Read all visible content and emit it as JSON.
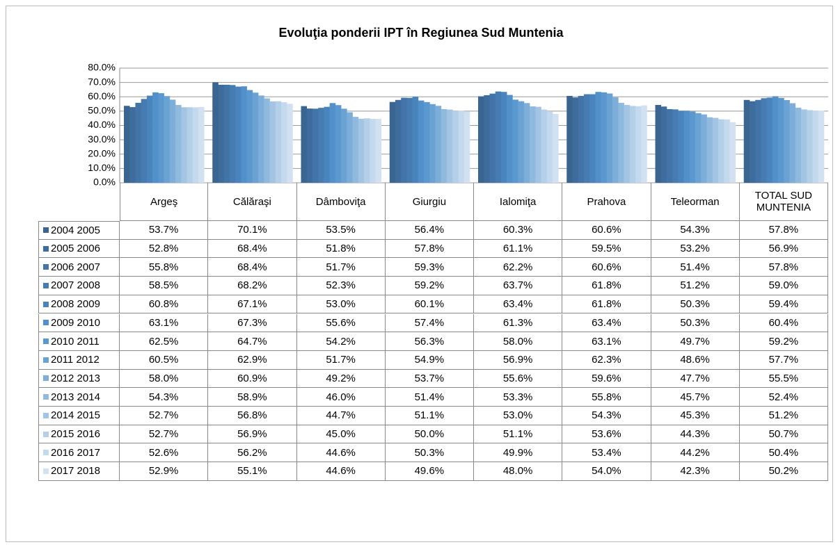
{
  "chart_data": {
    "type": "bar",
    "title": "Evoluţia ponderii IPT în Regiunea Sud Muntenia",
    "categories": [
      "Argeş",
      "Călăraşi",
      "Dâmboviţa",
      "Giurgiu",
      "Ialomiţa",
      "Prahova",
      "Teleorman",
      "TOTAL SUD MUNTENIA"
    ],
    "ylim": [
      0,
      80
    ],
    "yticks": [
      {
        "value": 0,
        "label": "0.0%"
      },
      {
        "value": 10,
        "label": "10.0%"
      },
      {
        "value": 20,
        "label": "20.0%"
      },
      {
        "value": 30,
        "label": "30.0%"
      },
      {
        "value": 40,
        "label": "40.0%"
      },
      {
        "value": 50,
        "label": "50.0%"
      },
      {
        "value": 60,
        "label": "60.0%"
      },
      {
        "value": 70,
        "label": "70.0%"
      },
      {
        "value": 80,
        "label": "80.0%"
      }
    ],
    "grid": true,
    "series": [
      {
        "name": "2004 2005",
        "color": "#3b6591",
        "values": [
          53.7,
          70.1,
          53.5,
          56.4,
          60.3,
          60.6,
          54.3,
          57.8
        ],
        "value_labels": [
          "53.7%",
          "70.1%",
          "53.5%",
          "56.4%",
          "60.3%",
          "60.6%",
          "54.3%",
          "57.8%"
        ]
      },
      {
        "name": "2005 2006",
        "color": "#3e6c9c",
        "values": [
          52.8,
          68.4,
          51.8,
          57.8,
          61.1,
          59.5,
          53.2,
          56.9
        ],
        "value_labels": [
          "52.8%",
          "68.4%",
          "51.8%",
          "57.8%",
          "61.1%",
          "59.5%",
          "53.2%",
          "56.9%"
        ]
      },
      {
        "name": "2006 2007",
        "color": "#4274a7",
        "values": [
          55.8,
          68.4,
          51.7,
          59.3,
          62.2,
          60.6,
          51.4,
          57.8
        ],
        "value_labels": [
          "55.8%",
          "68.4%",
          "51.7%",
          "59.3%",
          "62.2%",
          "60.6%",
          "51.4%",
          "57.8%"
        ]
      },
      {
        "name": "2007 2008",
        "color": "#467cb2",
        "values": [
          58.5,
          68.2,
          52.3,
          59.2,
          63.7,
          61.8,
          51.2,
          59.0
        ],
        "value_labels": [
          "58.5%",
          "68.2%",
          "52.3%",
          "59.2%",
          "63.7%",
          "61.8%",
          "51.2%",
          "59.0%"
        ]
      },
      {
        "name": "2008 2009",
        "color": "#4a84bd",
        "values": [
          60.8,
          67.1,
          53.0,
          60.1,
          63.4,
          61.8,
          50.3,
          59.4
        ],
        "value_labels": [
          "60.8%",
          "67.1%",
          "53.0%",
          "60.1%",
          "63.4%",
          "61.8%",
          "50.3%",
          "59.4%"
        ]
      },
      {
        "name": "2009 2010",
        "color": "#5190c9",
        "values": [
          63.1,
          67.3,
          55.6,
          57.4,
          61.3,
          63.4,
          50.3,
          60.4
        ],
        "value_labels": [
          "63.1%",
          "67.3%",
          "55.6%",
          "57.4%",
          "61.3%",
          "63.4%",
          "50.3%",
          "60.4%"
        ]
      },
      {
        "name": "2010 2011",
        "color": "#5b98cf",
        "values": [
          62.5,
          64.7,
          54.2,
          56.3,
          58.0,
          63.1,
          49.7,
          59.2
        ],
        "value_labels": [
          "62.5%",
          "64.7%",
          "54.2%",
          "56.3%",
          "58.0%",
          "63.1%",
          "49.7%",
          "59.2%"
        ]
      },
      {
        "name": "2011 2012",
        "color": "#6aa2d4",
        "values": [
          60.5,
          62.9,
          51.7,
          54.9,
          56.9,
          62.3,
          48.6,
          57.7
        ],
        "value_labels": [
          "60.5%",
          "62.9%",
          "51.7%",
          "54.9%",
          "56.9%",
          "62.3%",
          "48.6%",
          "57.7%"
        ]
      },
      {
        "name": "2012 2013",
        "color": "#7daed9",
        "values": [
          58.0,
          60.9,
          49.2,
          53.7,
          55.6,
          59.6,
          47.7,
          55.5
        ],
        "value_labels": [
          "58.0%",
          "60.9%",
          "49.2%",
          "53.7%",
          "55.6%",
          "59.6%",
          "47.7%",
          "55.5%"
        ]
      },
      {
        "name": "2013 2014",
        "color": "#90b9de",
        "values": [
          54.3,
          58.9,
          46.0,
          51.4,
          53.3,
          55.8,
          45.7,
          52.4
        ],
        "value_labels": [
          "54.3%",
          "58.9%",
          "46.0%",
          "51.4%",
          "53.3%",
          "55.8%",
          "45.7%",
          "52.4%"
        ]
      },
      {
        "name": "2014 2015",
        "color": "#a3c4e3",
        "values": [
          52.7,
          56.8,
          44.7,
          51.1,
          53.0,
          54.3,
          45.3,
          51.2
        ],
        "value_labels": [
          "52.7%",
          "56.8%",
          "44.7%",
          "51.1%",
          "53.0%",
          "54.3%",
          "45.3%",
          "51.2%"
        ]
      },
      {
        "name": "2015 2016",
        "color": "#b4cfe8",
        "values": [
          52.7,
          56.9,
          45.0,
          50.0,
          51.1,
          53.6,
          44.3,
          50.7
        ],
        "value_labels": [
          "52.7%",
          "56.9%",
          "45.0%",
          "50.0%",
          "51.1%",
          "53.6%",
          "44.3%",
          "50.7%"
        ]
      },
      {
        "name": "2016 2017",
        "color": "#c4d9ed",
        "values": [
          52.6,
          56.2,
          44.6,
          50.3,
          49.9,
          53.4,
          44.2,
          50.4
        ],
        "value_labels": [
          "52.6%",
          "56.2%",
          "44.6%",
          "50.3%",
          "49.9%",
          "53.4%",
          "44.2%",
          "50.4%"
        ]
      },
      {
        "name": "2017 2018",
        "color": "#d2e1f1",
        "values": [
          52.9,
          55.1,
          44.6,
          49.6,
          48.0,
          54.0,
          42.3,
          50.2
        ],
        "value_labels": [
          "52.9%",
          "55.1%",
          "44.6%",
          "49.6%",
          "48.0%",
          "54.0%",
          "42.3%",
          "50.2%"
        ]
      }
    ]
  }
}
